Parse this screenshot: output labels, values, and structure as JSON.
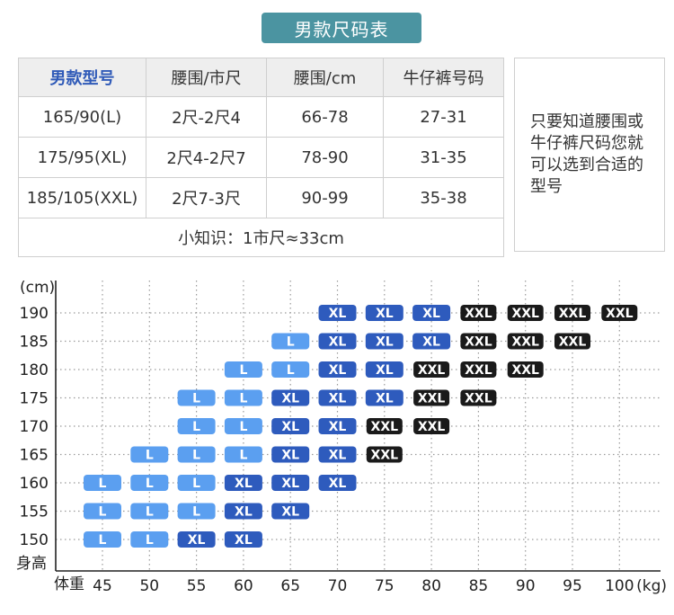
{
  "title": "男款尺码表",
  "size_table": {
    "headers": [
      "男款型号",
      "腰围/市尺",
      "腰围/cm",
      "牛仔裤号码"
    ],
    "rows": [
      [
        "165/90(L)",
        "2尺-2尺4",
        "66-78",
        "27-31"
      ],
      [
        "175/95(XL)",
        "2尺4-2尺7",
        "78-90",
        "31-35"
      ],
      [
        "185/105(XXL)",
        "2尺7-3尺",
        "90-99",
        "35-38"
      ]
    ],
    "note": "小知识：1市尺≈33cm"
  },
  "tip": "只要知道腰围或牛仔裤尺码您就可以选到合适的型号",
  "colors": {
    "L": "#5b9ff0",
    "XL": "#2e5bbd",
    "XXL": "#1a1a1a",
    "header_badge": "#4b94a1",
    "accent_text": "#2f5ab8"
  },
  "chart_data": {
    "type": "heatmap",
    "xlabel": "体重",
    "x_unit": "(kg)",
    "ylabel": "身高",
    "y_unit": "(cm)",
    "x": [
      45,
      50,
      55,
      60,
      65,
      70,
      75,
      80,
      85,
      90,
      95,
      100
    ],
    "y": [
      150,
      155,
      160,
      165,
      170,
      175,
      180,
      185,
      190
    ],
    "xlim": [
      45,
      100
    ],
    "ylim": [
      150,
      190
    ],
    "grid": true,
    "cells": [
      {
        "h": 190,
        "w": 70,
        "size": "XL"
      },
      {
        "h": 190,
        "w": 75,
        "size": "XL"
      },
      {
        "h": 190,
        "w": 80,
        "size": "XL"
      },
      {
        "h": 190,
        "w": 85,
        "size": "XXL"
      },
      {
        "h": 190,
        "w": 90,
        "size": "XXL"
      },
      {
        "h": 190,
        "w": 95,
        "size": "XXL"
      },
      {
        "h": 190,
        "w": 100,
        "size": "XXL"
      },
      {
        "h": 185,
        "w": 65,
        "size": "L"
      },
      {
        "h": 185,
        "w": 70,
        "size": "XL"
      },
      {
        "h": 185,
        "w": 75,
        "size": "XL"
      },
      {
        "h": 185,
        "w": 80,
        "size": "XL"
      },
      {
        "h": 185,
        "w": 85,
        "size": "XXL"
      },
      {
        "h": 185,
        "w": 90,
        "size": "XXL"
      },
      {
        "h": 185,
        "w": 95,
        "size": "XXL"
      },
      {
        "h": 180,
        "w": 60,
        "size": "L"
      },
      {
        "h": 180,
        "w": 65,
        "size": "L"
      },
      {
        "h": 180,
        "w": 70,
        "size": "XL"
      },
      {
        "h": 180,
        "w": 75,
        "size": "XL"
      },
      {
        "h": 180,
        "w": 80,
        "size": "XXL"
      },
      {
        "h": 180,
        "w": 85,
        "size": "XXL"
      },
      {
        "h": 180,
        "w": 90,
        "size": "XXL"
      },
      {
        "h": 175,
        "w": 55,
        "size": "L"
      },
      {
        "h": 175,
        "w": 60,
        "size": "L"
      },
      {
        "h": 175,
        "w": 65,
        "size": "XL"
      },
      {
        "h": 175,
        "w": 70,
        "size": "XL"
      },
      {
        "h": 175,
        "w": 75,
        "size": "XL"
      },
      {
        "h": 175,
        "w": 80,
        "size": "XXL"
      },
      {
        "h": 175,
        "w": 85,
        "size": "XXL"
      },
      {
        "h": 170,
        "w": 55,
        "size": "L"
      },
      {
        "h": 170,
        "w": 60,
        "size": "L"
      },
      {
        "h": 170,
        "w": 65,
        "size": "XL"
      },
      {
        "h": 170,
        "w": 70,
        "size": "XL"
      },
      {
        "h": 170,
        "w": 75,
        "size": "XXL"
      },
      {
        "h": 170,
        "w": 80,
        "size": "XXL"
      },
      {
        "h": 165,
        "w": 50,
        "size": "L"
      },
      {
        "h": 165,
        "w": 55,
        "size": "L"
      },
      {
        "h": 165,
        "w": 60,
        "size": "L"
      },
      {
        "h": 165,
        "w": 65,
        "size": "XL"
      },
      {
        "h": 165,
        "w": 70,
        "size": "XL"
      },
      {
        "h": 165,
        "w": 75,
        "size": "XXL"
      },
      {
        "h": 160,
        "w": 45,
        "size": "L"
      },
      {
        "h": 160,
        "w": 50,
        "size": "L"
      },
      {
        "h": 160,
        "w": 55,
        "size": "L"
      },
      {
        "h": 160,
        "w": 60,
        "size": "XL"
      },
      {
        "h": 160,
        "w": 65,
        "size": "XL"
      },
      {
        "h": 160,
        "w": 70,
        "size": "XL"
      },
      {
        "h": 155,
        "w": 45,
        "size": "L"
      },
      {
        "h": 155,
        "w": 50,
        "size": "L"
      },
      {
        "h": 155,
        "w": 55,
        "size": "L"
      },
      {
        "h": 155,
        "w": 60,
        "size": "XL"
      },
      {
        "h": 155,
        "w": 65,
        "size": "XL"
      },
      {
        "h": 150,
        "w": 45,
        "size": "L"
      },
      {
        "h": 150,
        "w": 50,
        "size": "L"
      },
      {
        "h": 150,
        "w": 55,
        "size": "XL"
      },
      {
        "h": 150,
        "w": 60,
        "size": "XL"
      }
    ]
  }
}
